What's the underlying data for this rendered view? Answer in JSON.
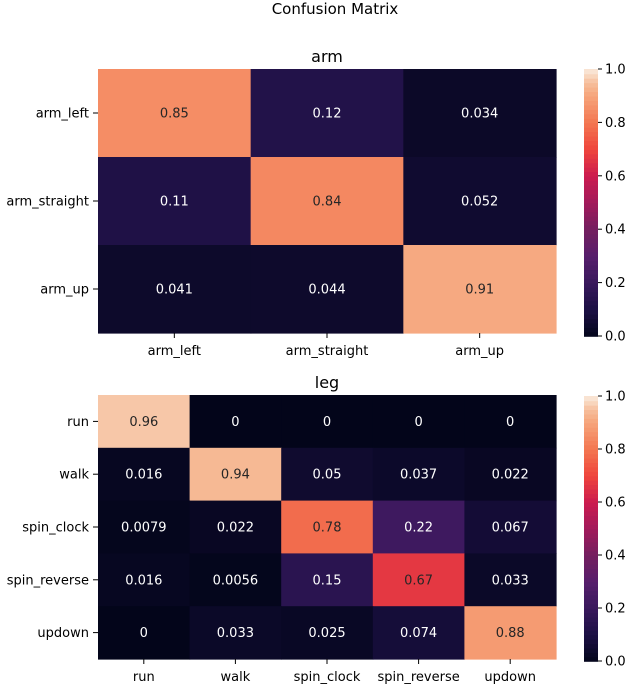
{
  "title": "Confusion Matrix",
  "chart_data": [
    {
      "type": "heatmap",
      "title": "arm",
      "x_labels": [
        "arm_left",
        "arm_straight",
        "arm_up"
      ],
      "y_labels": [
        "arm_left",
        "arm_straight",
        "arm_up"
      ],
      "values": [
        [
          0.85,
          0.12,
          0.034
        ],
        [
          0.11,
          0.84,
          0.052
        ],
        [
          0.041,
          0.044,
          0.91
        ]
      ],
      "cell_labels": [
        [
          "0.85",
          "0.12",
          "0.034"
        ],
        [
          "0.11",
          "0.84",
          "0.052"
        ],
        [
          "0.041",
          "0.044",
          "0.91"
        ]
      ],
      "vmin": 0.0,
      "vmax": 1.0,
      "colorbar_ticks": [
        "0.0",
        "0.2",
        "0.4",
        "0.6",
        "0.8",
        "1.0"
      ],
      "colormap": "rocket"
    },
    {
      "type": "heatmap",
      "title": "leg",
      "x_labels": [
        "run",
        "walk",
        "spin_clock",
        "spin_reverse",
        "updown"
      ],
      "y_labels": [
        "run",
        "walk",
        "spin_clock",
        "spin_reverse",
        "updown"
      ],
      "values": [
        [
          0.96,
          0,
          0,
          0,
          0
        ],
        [
          0.016,
          0.94,
          0.05,
          0.037,
          0.022
        ],
        [
          0.0079,
          0.022,
          0.78,
          0.22,
          0.067
        ],
        [
          0.016,
          0.0056,
          0.15,
          0.67,
          0.033
        ],
        [
          0,
          0.033,
          0.025,
          0.074,
          0.88
        ]
      ],
      "cell_labels": [
        [
          "0.96",
          "0",
          "0",
          "0",
          "0"
        ],
        [
          "0.016",
          "0.94",
          "0.05",
          "0.037",
          "0.022"
        ],
        [
          "0.0079",
          "0.022",
          "0.78",
          "0.22",
          "0.067"
        ],
        [
          "0.016",
          "0.0056",
          "0.15",
          "0.67",
          "0.033"
        ],
        [
          "0",
          "0.033",
          "0.025",
          "0.074",
          "0.88"
        ]
      ],
      "vmin": 0.0,
      "vmax": 1.0,
      "colorbar_ticks": [
        "0.0",
        "0.2",
        "0.4",
        "0.6",
        "0.8",
        "1.0"
      ],
      "colormap": "rocket"
    }
  ]
}
